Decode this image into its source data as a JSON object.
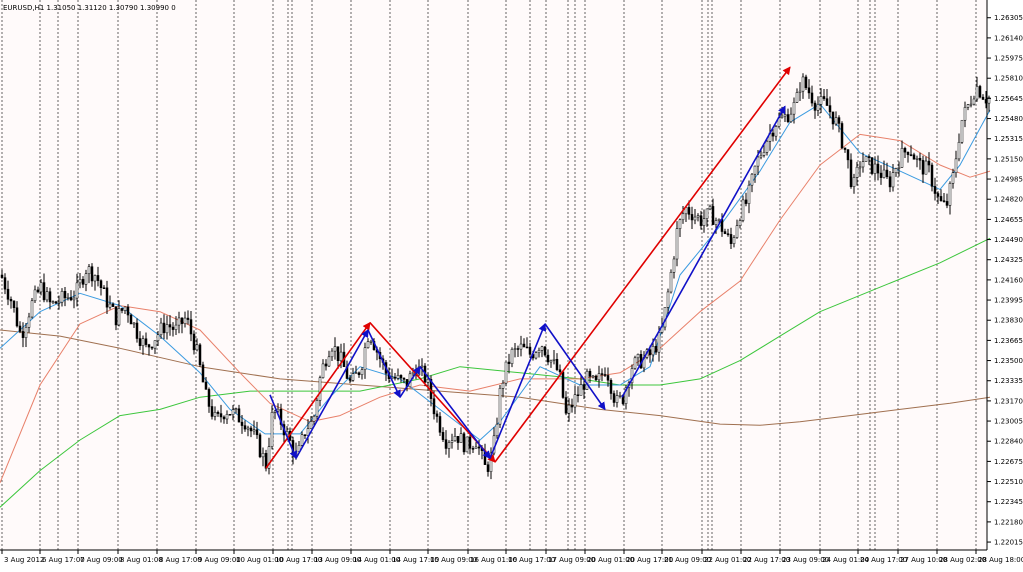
{
  "header": {
    "title": "EURUSD,H1  1.31050 1.31120 1.30790 1.30990  0"
  },
  "colors": {
    "background": "#fffafa",
    "candle": "#000000",
    "ma_fast": "#3b9be0",
    "ma_medium": "#e8806a",
    "ma_green": "#3cc63c",
    "ma_slow": "#a07050",
    "trend_red": "#e00000",
    "trend_blue": "#1010c8",
    "grid": "#000000"
  },
  "chart_data": {
    "type": "candlestick",
    "symbol": "EURUSD",
    "timeframe": "H1",
    "grid": "vertical-dashed",
    "ylim": [
      1.2195,
      1.2645
    ],
    "y_ticks": [
      "1.26305",
      "1.26140",
      "1.25975",
      "1.25810",
      "1.25645",
      "1.25480",
      "1.25315",
      "1.25150",
      "1.24985",
      "1.24820",
      "1.24655",
      "1.24490",
      "1.24325",
      "1.24160",
      "1.23995",
      "1.23830",
      "1.23665",
      "1.23500",
      "1.23335",
      "1.23170",
      "1.23005",
      "1.22840",
      "1.22675",
      "1.22510",
      "1.22345",
      "1.22180",
      "1.22015"
    ],
    "x_ticks": [
      "3 Aug 2012",
      "6 Aug 17:00",
      "7 Aug 09:00",
      "8 Aug 01:00",
      "8 Aug 17:00",
      "9 Aug 09:00",
      "10 Aug 01:00",
      "10 Aug 17:00",
      "13 Aug 09:00",
      "14 Aug 01:00",
      "14 Aug 17:00",
      "15 Aug 09:00",
      "16 Aug 01:00",
      "16 Aug 17:00",
      "17 Aug 09:00",
      "20 Aug 01:00",
      "20 Aug 17:00",
      "21 Aug 09:00",
      "22 Aug 01:00",
      "22 Aug 17:00",
      "23 Aug 09:00",
      "24 Aug 01:00",
      "24 Aug 17:00",
      "27 Aug 10:00",
      "28 Aug 02:00",
      "28 Aug 18:00"
    ],
    "price_path": [
      [
        0,
        1.242
      ],
      [
        10,
        1.24
      ],
      [
        20,
        1.237
      ],
      [
        30,
        1.2395
      ],
      [
        40,
        1.241
      ],
      [
        50,
        1.2395
      ],
      [
        60,
        1.24
      ],
      [
        75,
        1.2405
      ],
      [
        85,
        1.2425
      ],
      [
        95,
        1.242
      ],
      [
        105,
        1.24
      ],
      [
        115,
        1.2385
      ],
      [
        125,
        1.2395
      ],
      [
        135,
        1.2375
      ],
      [
        145,
        1.236
      ],
      [
        155,
        1.237
      ],
      [
        165,
        1.238
      ],
      [
        175,
        1.2375
      ],
      [
        185,
        1.2385
      ],
      [
        195,
        1.236
      ],
      [
        205,
        1.232
      ],
      [
        215,
        1.23
      ],
      [
        225,
        1.231
      ],
      [
        235,
        1.2305
      ],
      [
        245,
        1.23
      ],
      [
        255,
        1.2285
      ],
      [
        265,
        1.2265
      ],
      [
        272,
        1.231
      ],
      [
        280,
        1.23
      ],
      [
        288,
        1.2285
      ],
      [
        296,
        1.227
      ],
      [
        305,
        1.2295
      ],
      [
        312,
        1.23
      ],
      [
        320,
        1.234
      ],
      [
        330,
        1.2365
      ],
      [
        340,
        1.235
      ],
      [
        350,
        1.233
      ],
      [
        360,
        1.2345
      ],
      [
        368,
        1.2375
      ],
      [
        375,
        1.236
      ],
      [
        385,
        1.234
      ],
      [
        395,
        1.2335
      ],
      [
        405,
        1.233
      ],
      [
        415,
        1.2345
      ],
      [
        425,
        1.2335
      ],
      [
        435,
        1.2305
      ],
      [
        445,
        1.2285
      ],
      [
        455,
        1.229
      ],
      [
        465,
        1.228
      ],
      [
        475,
        1.2285
      ],
      [
        485,
        1.226
      ],
      [
        492,
        1.2275
      ],
      [
        500,
        1.233
      ],
      [
        510,
        1.2355
      ],
      [
        520,
        1.236
      ],
      [
        530,
        1.2355
      ],
      [
        540,
        1.2365
      ],
      [
        550,
        1.235
      ],
      [
        558,
        1.234
      ],
      [
        565,
        1.2305
      ],
      [
        575,
        1.232
      ],
      [
        585,
        1.2335
      ],
      [
        595,
        1.233
      ],
      [
        605,
        1.2345
      ],
      [
        615,
        1.2315
      ],
      [
        622,
        1.232
      ],
      [
        630,
        1.2345
      ],
      [
        640,
        1.235
      ],
      [
        650,
        1.2355
      ],
      [
        660,
        1.237
      ],
      [
        668,
        1.241
      ],
      [
        676,
        1.2455
      ],
      [
        684,
        1.2475
      ],
      [
        692,
        1.247
      ],
      [
        700,
        1.2465
      ],
      [
        710,
        1.247
      ],
      [
        720,
        1.246
      ],
      [
        730,
        1.2445
      ],
      [
        738,
        1.247
      ],
      [
        746,
        1.248
      ],
      [
        755,
        1.251
      ],
      [
        765,
        1.253
      ],
      [
        775,
        1.2545
      ],
      [
        785,
        1.255
      ],
      [
        795,
        1.256
      ],
      [
        800,
        1.258
      ],
      [
        808,
        1.257
      ],
      [
        815,
        1.256
      ],
      [
        825,
        1.256
      ],
      [
        835,
        1.2545
      ],
      [
        845,
        1.252
      ],
      [
        852,
        1.249
      ],
      [
        860,
        1.2515
      ],
      [
        868,
        1.251
      ],
      [
        878,
        1.2505
      ],
      [
        888,
        1.2495
      ],
      [
        898,
        1.2515
      ],
      [
        908,
        1.2525
      ],
      [
        918,
        1.251
      ],
      [
        928,
        1.2505
      ],
      [
        938,
        1.248
      ],
      [
        945,
        1.2475
      ],
      [
        952,
        1.25
      ],
      [
        960,
        1.2545
      ],
      [
        968,
        1.256
      ],
      [
        975,
        1.2575
      ],
      [
        985,
        1.2565
      ],
      [
        992,
        1.2565
      ]
    ],
    "ma_fast": [
      [
        0,
        1.236
      ],
      [
        40,
        1.239
      ],
      [
        80,
        1.2405
      ],
      [
        120,
        1.2395
      ],
      [
        160,
        1.237
      ],
      [
        200,
        1.234
      ],
      [
        230,
        1.231
      ],
      [
        265,
        1.229
      ],
      [
        300,
        1.229
      ],
      [
        330,
        1.232
      ],
      [
        360,
        1.2345
      ],
      [
        400,
        1.2335
      ],
      [
        440,
        1.231
      ],
      [
        480,
        1.2285
      ],
      [
        500,
        1.23
      ],
      [
        540,
        1.2345
      ],
      [
        580,
        1.233
      ],
      [
        620,
        1.233
      ],
      [
        650,
        1.2345
      ],
      [
        680,
        1.242
      ],
      [
        720,
        1.246
      ],
      [
        760,
        1.2505
      ],
      [
        790,
        1.2545
      ],
      [
        820,
        1.256
      ],
      [
        860,
        1.252
      ],
      [
        900,
        1.2505
      ],
      [
        940,
        1.249
      ],
      [
        960,
        1.251
      ],
      [
        990,
        1.2555
      ]
    ],
    "ma_medium": [
      [
        0,
        1.225
      ],
      [
        40,
        1.233
      ],
      [
        80,
        1.238
      ],
      [
        120,
        1.2395
      ],
      [
        160,
        1.239
      ],
      [
        200,
        1.2375
      ],
      [
        240,
        1.234
      ],
      [
        270,
        1.2315
      ],
      [
        310,
        1.23
      ],
      [
        340,
        1.2305
      ],
      [
        380,
        1.232
      ],
      [
        420,
        1.233
      ],
      [
        470,
        1.2325
      ],
      [
        520,
        1.2335
      ],
      [
        580,
        1.2335
      ],
      [
        620,
        1.234
      ],
      [
        660,
        1.236
      ],
      [
        700,
        1.239
      ],
      [
        740,
        1.2415
      ],
      [
        780,
        1.2465
      ],
      [
        820,
        1.251
      ],
      [
        860,
        1.2535
      ],
      [
        900,
        1.253
      ],
      [
        940,
        1.251
      ],
      [
        970,
        1.25
      ],
      [
        990,
        1.2505
      ]
    ],
    "ma_green": [
      [
        0,
        1.223
      ],
      [
        40,
        1.226
      ],
      [
        80,
        1.2285
      ],
      [
        120,
        1.2305
      ],
      [
        160,
        1.231
      ],
      [
        200,
        1.232
      ],
      [
        250,
        1.2325
      ],
      [
        300,
        1.2325
      ],
      [
        360,
        1.2325
      ],
      [
        420,
        1.2335
      ],
      [
        460,
        1.2345
      ],
      [
        520,
        1.234
      ],
      [
        580,
        1.2335
      ],
      [
        620,
        1.233
      ],
      [
        660,
        1.233
      ],
      [
        700,
        1.2335
      ],
      [
        740,
        1.235
      ],
      [
        780,
        1.237
      ],
      [
        820,
        1.239
      ],
      [
        880,
        1.241
      ],
      [
        940,
        1.243
      ],
      [
        990,
        1.245
      ]
    ],
    "ma_slow": [
      [
        0,
        1.2375
      ],
      [
        60,
        1.237
      ],
      [
        120,
        1.236
      ],
      [
        200,
        1.2345
      ],
      [
        280,
        1.2335
      ],
      [
        360,
        1.233
      ],
      [
        440,
        1.2325
      ],
      [
        520,
        1.232
      ],
      [
        600,
        1.231
      ],
      [
        660,
        1.2305
      ],
      [
        720,
        1.2298
      ],
      [
        760,
        1.2297
      ],
      [
        800,
        1.23
      ],
      [
        850,
        1.2305
      ],
      [
        900,
        1.231
      ],
      [
        950,
        1.2315
      ],
      [
        990,
        1.232
      ]
    ],
    "trend_lines_red": [
      [
        [
          266,
          1.2262
        ],
        [
          370,
          1.2381
        ]
      ],
      [
        [
          370,
          1.2381
        ],
        [
          495,
          1.2267
        ]
      ],
      [
        [
          495,
          1.2267
        ],
        [
          790,
          1.259
        ]
      ]
    ],
    "trend_lines_blue": [
      [
        [
          270,
          1.2322
        ],
        [
          296,
          1.227
        ]
      ],
      [
        [
          296,
          1.227
        ],
        [
          368,
          1.2375
        ]
      ],
      [
        [
          368,
          1.2375
        ],
        [
          400,
          1.232
        ]
      ],
      [
        [
          400,
          1.232
        ],
        [
          420,
          1.2345
        ]
      ],
      [
        [
          420,
          1.2345
        ],
        [
          490,
          1.227
        ]
      ],
      [
        [
          490,
          1.227
        ],
        [
          545,
          1.238
        ]
      ],
      [
        [
          545,
          1.238
        ],
        [
          605,
          1.231
        ]
      ],
      [
        [
          622,
          1.232
        ],
        [
          785,
          1.2558
        ]
      ]
    ]
  }
}
